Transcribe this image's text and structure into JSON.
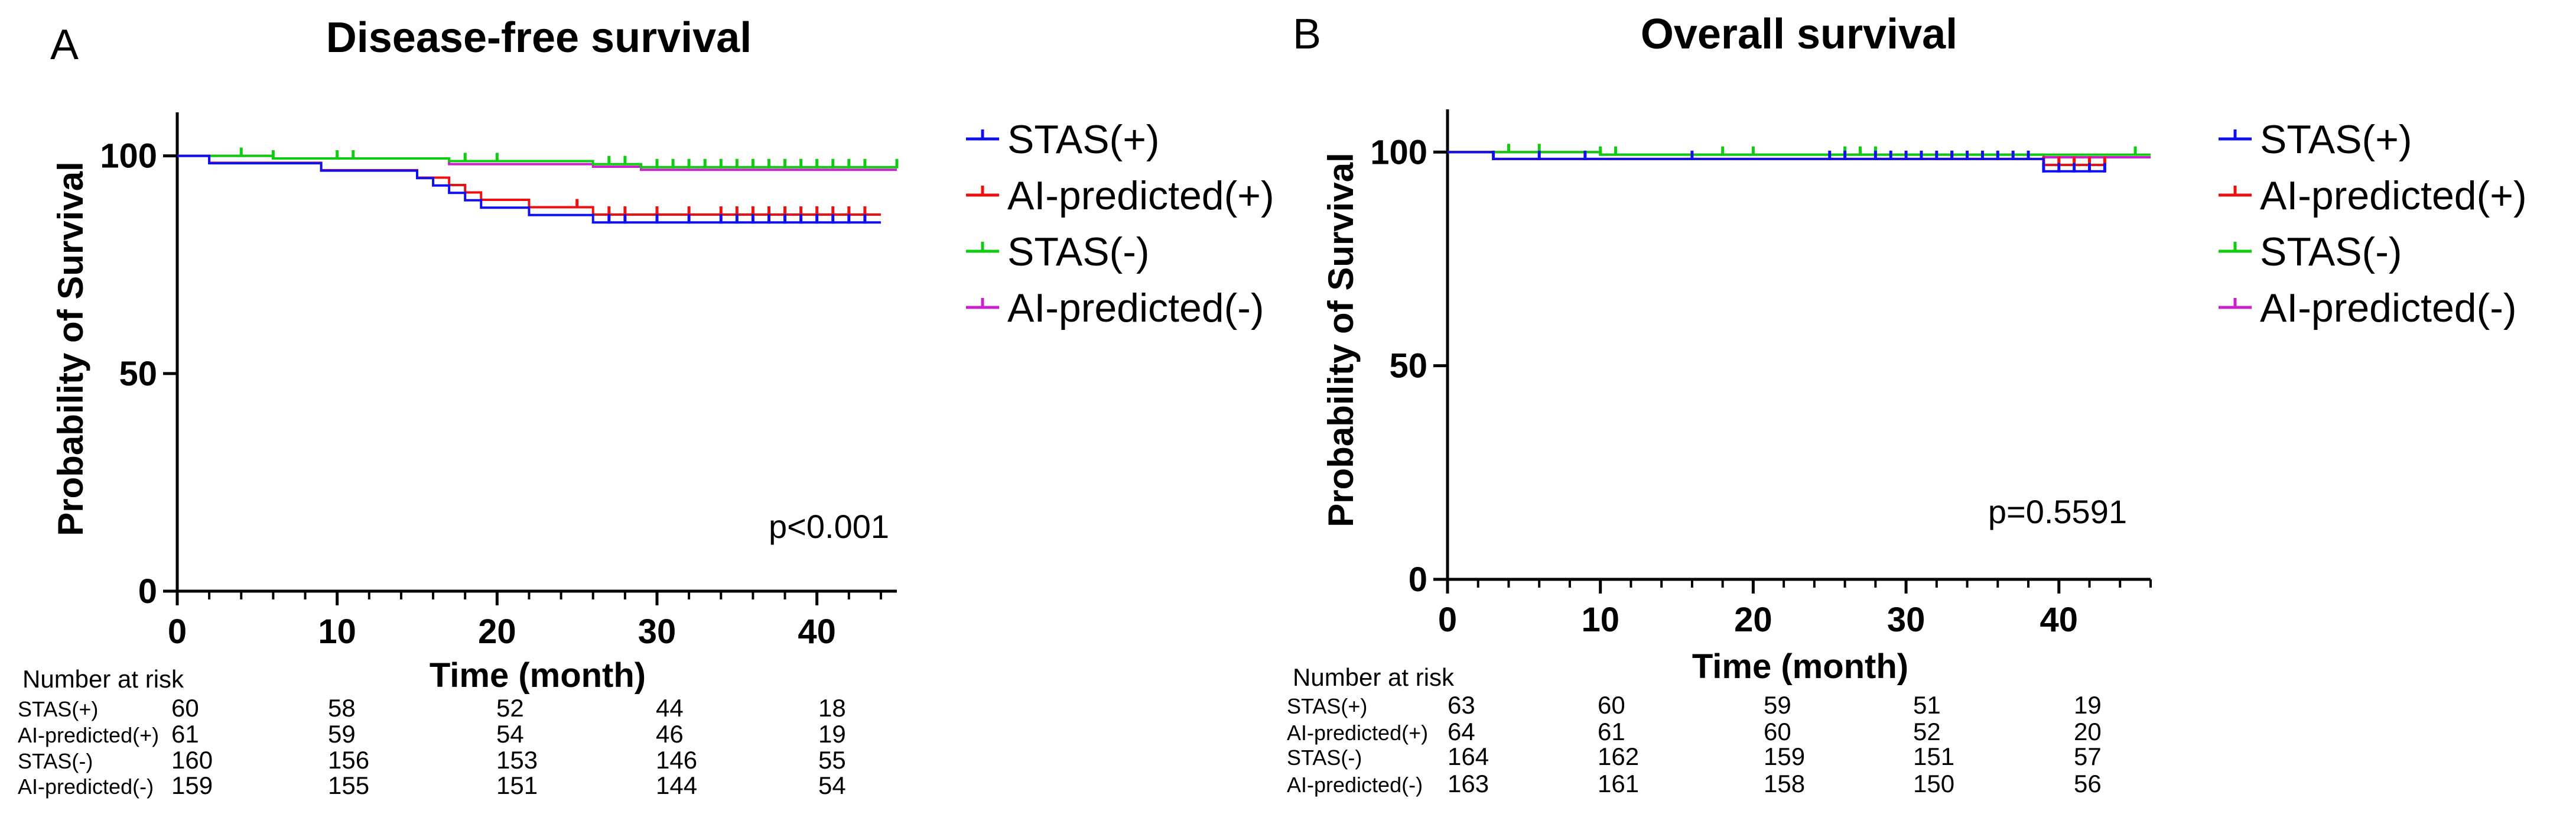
{
  "chart_data": [
    {
      "type": "line",
      "panel_letter": "A",
      "title": "Disease-free survival",
      "xlabel": "Time (month)",
      "ylabel": "Probability of Survival",
      "xlim": [
        0,
        45
      ],
      "ylim": [
        0,
        110
      ],
      "xticks": [
        0,
        10,
        20,
        30,
        40
      ],
      "yticks": [
        0,
        50,
        100
      ],
      "p_value": "p<0.001",
      "legend_position": "right",
      "series": [
        {
          "name": "STAS(+)",
          "color": "#1010ee",
          "steps": [
            [
              0,
              100
            ],
            [
              2,
              98.3
            ],
            [
              9,
              96.6
            ],
            [
              15,
              94.9
            ],
            [
              16,
              93.2
            ],
            [
              17,
              91.5
            ],
            [
              18,
              89.8
            ],
            [
              19,
              88.1
            ],
            [
              22,
              86.4
            ],
            [
              26,
              84.7
            ],
            [
              44,
              84.7
            ]
          ],
          "censor": [
            27,
            28,
            30,
            32,
            34,
            35,
            36,
            37,
            38,
            39,
            40,
            41,
            42,
            43
          ]
        },
        {
          "name": "AI-predicted(+)",
          "color": "#ee1010",
          "steps": [
            [
              0,
              100
            ],
            [
              2,
              98.4
            ],
            [
              9,
              96.7
            ],
            [
              15,
              95.0
            ],
            [
              17,
              93.3
            ],
            [
              18,
              91.6
            ],
            [
              19,
              89.9
            ],
            [
              22,
              88.2
            ],
            [
              26,
              86.5
            ],
            [
              44,
              86.5
            ]
          ],
          "censor": [
            25,
            27,
            28,
            30,
            32,
            34,
            35,
            36,
            37,
            38,
            39,
            40,
            41,
            42,
            43
          ]
        },
        {
          "name": "STAS(-)",
          "color": "#10cc10",
          "steps": [
            [
              0,
              100
            ],
            [
              6,
              99.4
            ],
            [
              17,
              98.8
            ],
            [
              26,
              98.1
            ],
            [
              29,
              97.4
            ],
            [
              45,
              97.4
            ]
          ],
          "censor": [
            4,
            6,
            10,
            11,
            18,
            20,
            27,
            28,
            30,
            31,
            32,
            33,
            34,
            35,
            36,
            37,
            38,
            39,
            40,
            41,
            42,
            43,
            45
          ]
        },
        {
          "name": "AI-predicted(-)",
          "color": "#cc20cc",
          "steps": [
            [
              0,
              100
            ],
            [
              6,
              99.4
            ],
            [
              17,
              98.1
            ],
            [
              26,
              97.5
            ],
            [
              29,
              96.8
            ],
            [
              45,
              96.8
            ]
          ],
          "censor": []
        }
      ],
      "risk_table": {
        "title": "Number at risk",
        "times": [
          0,
          10,
          20,
          30,
          40
        ],
        "rows": [
          {
            "label": "STAS(+)",
            "values": [
              "60",
              "58",
              "52",
              "44",
              "18"
            ]
          },
          {
            "label": "AI-predicted(+)",
            "values": [
              "61",
              "59",
              "54",
              "46",
              "19"
            ]
          },
          {
            "label": "STAS(-)",
            "values": [
              "160",
              "156",
              "153",
              "146",
              "55"
            ]
          },
          {
            "label": "AI-predicted(-)",
            "values": [
              "159",
              "155",
              "151",
              "144",
              "54"
            ]
          }
        ]
      }
    },
    {
      "type": "line",
      "panel_letter": "B",
      "title": "Overall survival",
      "xlabel": "Time (month)",
      "ylabel": "Probability of Survival",
      "xlim": [
        0,
        46
      ],
      "ylim": [
        0,
        110
      ],
      "xticks": [
        0,
        10,
        20,
        30,
        40
      ],
      "yticks": [
        0,
        50,
        100
      ],
      "p_value": "p=0.5591",
      "legend_position": "right",
      "series": [
        {
          "name": "STAS(+)",
          "color": "#1010ee",
          "steps": [
            [
              0,
              100
            ],
            [
              3,
              98.4
            ],
            [
              39,
              98.4
            ],
            [
              39,
              95.5
            ],
            [
              43,
              95.5
            ]
          ],
          "censor": [
            3,
            6,
            9,
            16,
            25,
            26,
            28,
            29,
            30,
            31,
            32,
            33,
            34,
            35,
            36,
            37,
            38,
            39,
            40,
            41,
            42,
            43
          ]
        },
        {
          "name": "AI-predicted(+)",
          "color": "#ee1010",
          "steps": [
            [
              0,
              100
            ],
            [
              3,
              98.4
            ],
            [
              39,
              98.4
            ],
            [
              39,
              97.0
            ],
            [
              43,
              97.0
            ]
          ],
          "censor": [
            33,
            39,
            40,
            41,
            42,
            43
          ]
        },
        {
          "name": "STAS(-)",
          "color": "#10cc10",
          "steps": [
            [
              0,
              100
            ],
            [
              10,
              99.4
            ],
            [
              46,
              99.4
            ]
          ],
          "censor": [
            4,
            6,
            10,
            11,
            18,
            20,
            26,
            27,
            28,
            45
          ]
        },
        {
          "name": "AI-predicted(-)",
          "color": "#cc20cc",
          "steps": [
            [
              0,
              100
            ],
            [
              10,
              99.4
            ],
            [
              39,
              99.4
            ],
            [
              39,
              98.8
            ],
            [
              46,
              98.8
            ]
          ],
          "censor": []
        }
      ],
      "risk_table": {
        "title": "Number at risk",
        "times": [
          0,
          10,
          20,
          30,
          40
        ],
        "rows": [
          {
            "label": "STAS(+)",
            "values": [
              "63",
              "60",
              "59",
              "51",
              "19"
            ]
          },
          {
            "label": "AI-predicted(+)",
            "values": [
              "64",
              "61",
              "60",
              "52",
              "20"
            ]
          },
          {
            "label": "STAS(-)",
            "values": [
              "164",
              "162",
              "159",
              "151",
              "57"
            ]
          },
          {
            "label": "AI-predicted(-)",
            "values": [
              "163",
              "161",
              "158",
              "150",
              "56"
            ]
          }
        ]
      }
    }
  ]
}
